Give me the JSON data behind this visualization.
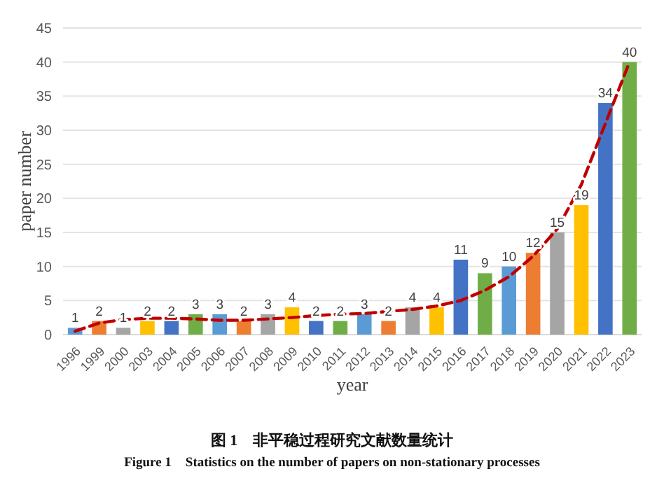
{
  "chart_data": {
    "type": "bar",
    "xlabel": "year",
    "ylabel": "paper number",
    "categories": [
      "1996",
      "1999",
      "2000",
      "2003",
      "2004",
      "2005",
      "2006",
      "2007",
      "2008",
      "2009",
      "2010",
      "2011",
      "2012",
      "2013",
      "2014",
      "2015",
      "2016",
      "2017",
      "2018",
      "2019",
      "2020",
      "2021",
      "2022",
      "2023"
    ],
    "series": [
      {
        "type": "bar",
        "colors": [
          "#5b9bd5",
          "#ed7d31",
          "#a5a5a5",
          "#ffc000",
          "#4472c4",
          "#70ad47",
          "#5b9bd5",
          "#ed7d31",
          "#a5a5a5",
          "#ffc000",
          "#4472c4",
          "#70ad47",
          "#5b9bd5",
          "#ed7d31",
          "#a5a5a5",
          "#ffc000",
          "#4472c4",
          "#70ad47",
          "#5b9bd5",
          "#ed7d31",
          "#a5a5a5",
          "#ffc000",
          "#4472c4",
          "#70ad47"
        ],
        "values": [
          1,
          2,
          1,
          2,
          2,
          3,
          3,
          2,
          3,
          4,
          2,
          2,
          3,
          2,
          4,
          4,
          11,
          9,
          10,
          12,
          15,
          19,
          34,
          40
        ],
        "data_labels": true
      },
      {
        "type": "line",
        "color": "#c00000",
        "line_style": "dashed",
        "marker": "none",
        "values": [
          0.5,
          1.7,
          2.2,
          2.4,
          2.4,
          2.3,
          2.1,
          2.1,
          2.3,
          2.5,
          2.8,
          3.0,
          3.1,
          3.4,
          3.7,
          4.2,
          5.0,
          6.5,
          8.5,
          11.5,
          15.5,
          22,
          31,
          40
        ]
      }
    ],
    "ylim": [
      0,
      45
    ],
    "yticks": [
      0,
      5,
      10,
      15,
      20,
      25,
      30,
      35,
      40,
      45
    ],
    "grid": "y",
    "annotations": [
      "图 1　非平稳过程研究文献数量统计",
      "Figure 1　Statistics on the number of papers on non-stationary processes"
    ]
  }
}
